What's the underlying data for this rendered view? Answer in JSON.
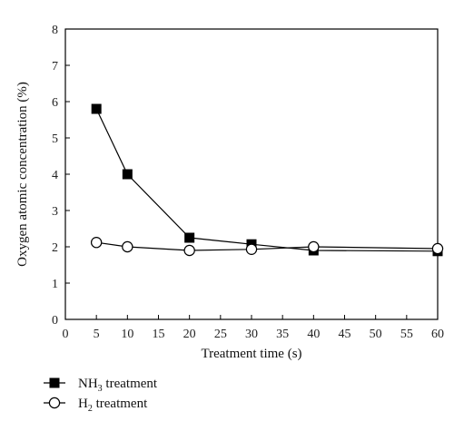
{
  "chart_data": {
    "type": "line",
    "xlabel": "Treatment time (s)",
    "ylabel": "Oxygen atomic concentration (%)",
    "xlim": [
      0,
      60
    ],
    "ylim": [
      0,
      8
    ],
    "xticks": [
      0,
      5,
      10,
      15,
      20,
      25,
      30,
      35,
      40,
      45,
      50,
      55,
      60
    ],
    "yticks": [
      0,
      1,
      2,
      3,
      4,
      5,
      6,
      7,
      8
    ],
    "grid": false,
    "legend_position": "bottom-left, below plot",
    "series": [
      {
        "name": {
          "base": "NH",
          "sub": "3",
          "suffix": " treatment"
        },
        "marker": "filled-square",
        "color": "#000000",
        "x": [
          5,
          10,
          20,
          30,
          40,
          60
        ],
        "y": [
          5.8,
          4.0,
          2.25,
          2.07,
          1.9,
          1.88
        ]
      },
      {
        "name": {
          "base": "H",
          "sub": "2",
          "suffix": " treatment"
        },
        "marker": "open-circle",
        "color": "#000000",
        "x": [
          5,
          10,
          20,
          30,
          40,
          60
        ],
        "y": [
          2.12,
          2.0,
          1.9,
          1.93,
          2.0,
          1.95
        ]
      }
    ]
  }
}
